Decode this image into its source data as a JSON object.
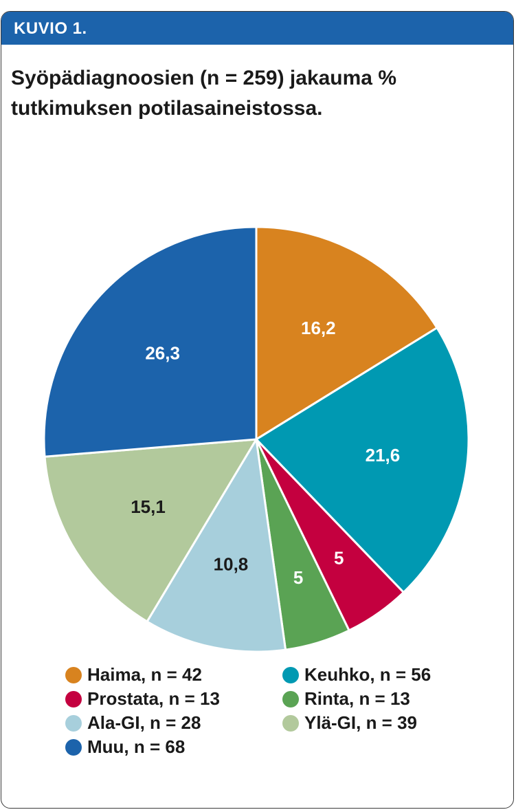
{
  "header": {
    "label": "KUVIO 1."
  },
  "chart_data": {
    "type": "pie",
    "title": "Syöpädiagnoosien (n = 259) jakauma % tutkimuksen potilasaineistossa.",
    "title_lines": [
      "Syöpädiagnoosien (n = 259) jakauma %",
      "tutkimuksen potilasaineistossa."
    ],
    "slices": [
      {
        "label": "Haima, n = 42",
        "value": 16.2,
        "display": "16,2",
        "color": "#d8831f",
        "text_color": "#ffffff"
      },
      {
        "label": "Keuhko, n = 56",
        "value": 21.6,
        "display": "21,6",
        "color": "#0099b2",
        "text_color": "#ffffff"
      },
      {
        "label": "Prostata, n = 13",
        "value": 5.0,
        "display": "5",
        "color": "#c4003f",
        "text_color": "#ffffff"
      },
      {
        "label": "Rinta, n = 13",
        "value": 5.0,
        "display": "5",
        "color": "#5aa354",
        "text_color": "#ffffff"
      },
      {
        "label": "Ala-GI, n = 28",
        "value": 10.8,
        "display": "10,8",
        "color": "#a7cfdc",
        "text_color": "#1a1a1a"
      },
      {
        "label": "Ylä-GI, n = 39",
        "value": 15.1,
        "display": "15,1",
        "color": "#b2c99c",
        "text_color": "#1a1a1a"
      },
      {
        "label": "Muu, n = 68",
        "value": 26.3,
        "display": "26,3",
        "color": "#1c63ab",
        "text_color": "#ffffff"
      }
    ],
    "legend_placement": "bottom"
  }
}
